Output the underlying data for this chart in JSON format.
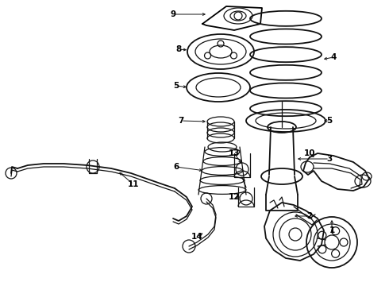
{
  "background_color": "#ffffff",
  "line_color": "#111111",
  "label_color": "#000000",
  "fig_width": 4.9,
  "fig_height": 3.6,
  "dpi": 100
}
